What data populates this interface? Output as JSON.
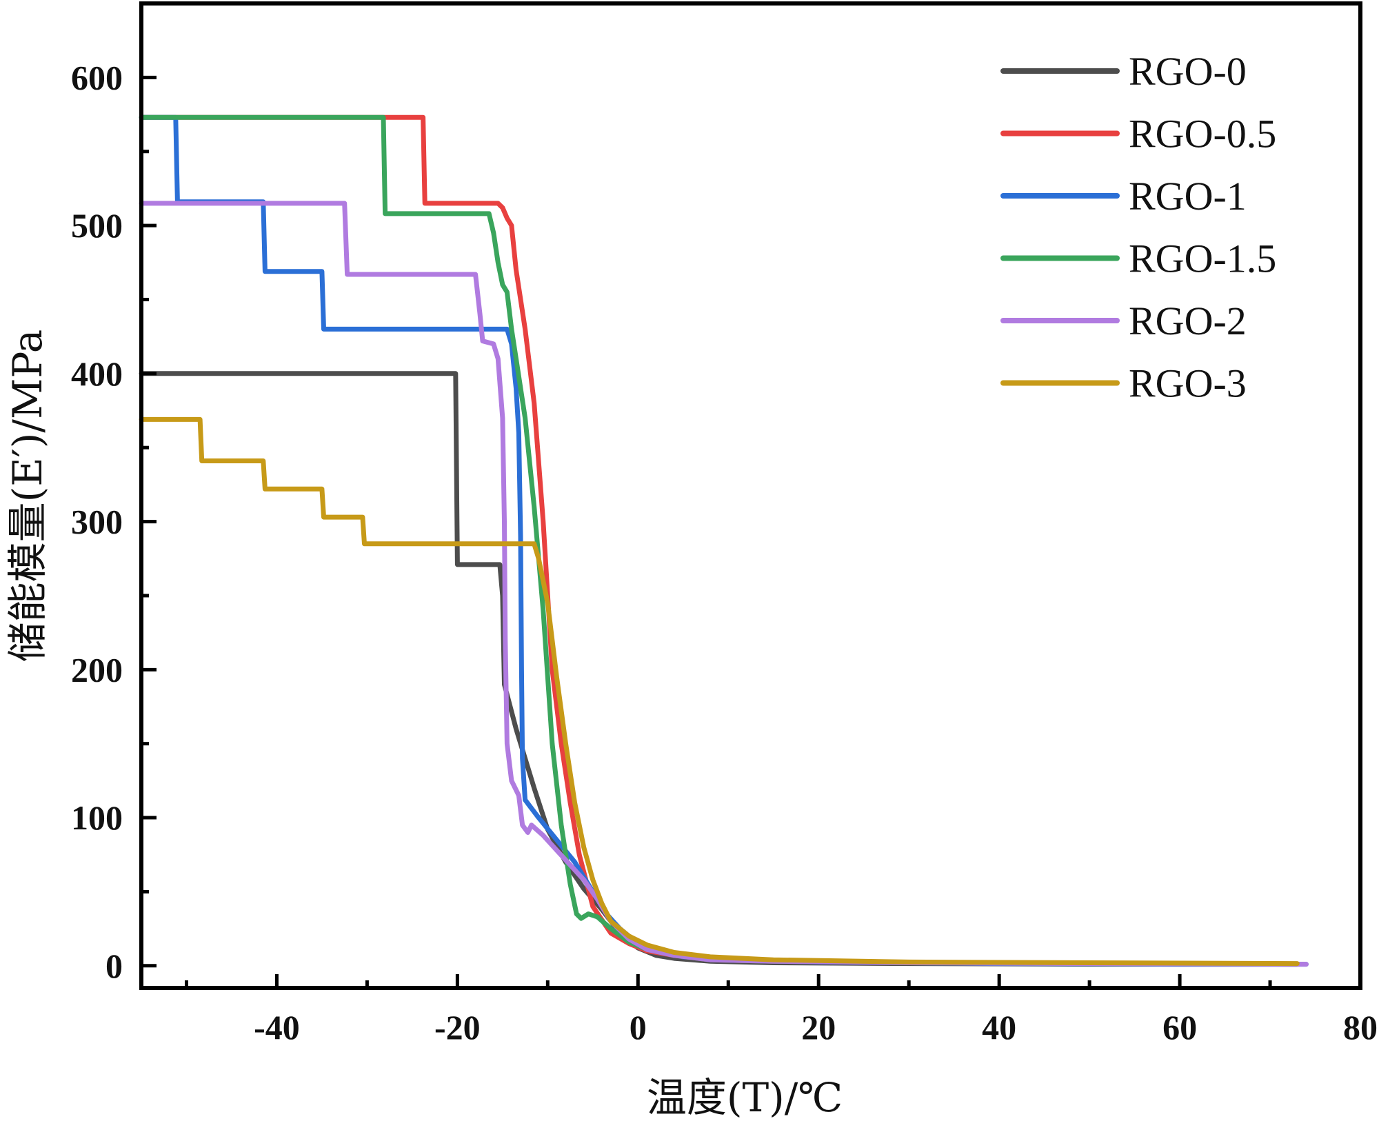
{
  "chart_data": {
    "type": "line",
    "title": "",
    "xlabel": "温度(T)/℃",
    "ylabel": "储能模量(E′)/MPa",
    "xlim": [
      -55,
      80
    ],
    "ylim": [
      -15,
      650
    ],
    "xticks": [
      -40,
      -20,
      0,
      20,
      40,
      60,
      80
    ],
    "yticks": [
      0,
      100,
      200,
      300,
      400,
      500,
      600
    ],
    "grid": false,
    "legend": "top-right",
    "series": [
      {
        "name": "RGO-0",
        "color": "#4d4d4d",
        "points": [
          [
            -55,
            400
          ],
          [
            -20.2,
            400
          ],
          [
            -20,
            271
          ],
          [
            -15.3,
            271
          ],
          [
            -15,
            250
          ],
          [
            -14.8,
            190
          ],
          [
            -13.5,
            160
          ],
          [
            -11.5,
            120
          ],
          [
            -10,
            92
          ],
          [
            -8,
            70
          ],
          [
            -6,
            52
          ],
          [
            -4,
            38
          ],
          [
            -2,
            22
          ],
          [
            0,
            12
          ],
          [
            2,
            7
          ],
          [
            4,
            5
          ],
          [
            8,
            3
          ],
          [
            15,
            2
          ],
          [
            30,
            1.5
          ],
          [
            50,
            1
          ],
          [
            73,
            1
          ]
        ]
      },
      {
        "name": "RGO-0.5",
        "color": "#e8403f",
        "points": [
          [
            -55,
            573
          ],
          [
            -23.8,
            573
          ],
          [
            -23.6,
            515
          ],
          [
            -15.5,
            515
          ],
          [
            -15,
            512
          ],
          [
            -14.5,
            505
          ],
          [
            -14,
            500
          ],
          [
            -13.5,
            470
          ],
          [
            -12.5,
            430
          ],
          [
            -11.5,
            380
          ],
          [
            -10.5,
            300
          ],
          [
            -9.5,
            200
          ],
          [
            -8.5,
            150
          ],
          [
            -7.5,
            110
          ],
          [
            -6.5,
            75
          ],
          [
            -5,
            40
          ],
          [
            -3,
            22
          ],
          [
            -1,
            15
          ],
          [
            1,
            10
          ],
          [
            4,
            7
          ],
          [
            8,
            4
          ],
          [
            15,
            3
          ],
          [
            30,
            2
          ],
          [
            50,
            1.5
          ],
          [
            73,
            1
          ]
        ]
      },
      {
        "name": "RGO-1",
        "color": "#2b6fd6",
        "points": [
          [
            -55,
            573
          ],
          [
            -51.2,
            573
          ],
          [
            -51,
            516
          ],
          [
            -41.5,
            516
          ],
          [
            -41.3,
            469
          ],
          [
            -35,
            469
          ],
          [
            -34.8,
            430
          ],
          [
            -14.5,
            430
          ],
          [
            -14,
            420
          ],
          [
            -13.5,
            390
          ],
          [
            -13.2,
            360
          ],
          [
            -13,
            290
          ],
          [
            -12.9,
            200
          ],
          [
            -12.8,
            140
          ],
          [
            -12.5,
            112
          ],
          [
            -11,
            100
          ],
          [
            -9,
            85
          ],
          [
            -7,
            70
          ],
          [
            -5,
            50
          ],
          [
            -3.5,
            35
          ],
          [
            -2,
            25
          ],
          [
            0,
            15
          ],
          [
            2,
            10
          ],
          [
            5,
            6
          ],
          [
            10,
            4
          ],
          [
            20,
            2.5
          ],
          [
            40,
            1.5
          ],
          [
            60,
            1
          ],
          [
            74,
            1
          ]
        ]
      },
      {
        "name": "RGO-1.5",
        "color": "#3aa55c",
        "points": [
          [
            -55,
            573
          ],
          [
            -28.2,
            573
          ],
          [
            -28,
            508
          ],
          [
            -16.5,
            508
          ],
          [
            -16,
            495
          ],
          [
            -15.5,
            475
          ],
          [
            -15,
            460
          ],
          [
            -14.5,
            455
          ],
          [
            -14,
            430
          ],
          [
            -13.5,
            410
          ],
          [
            -12.5,
            370
          ],
          [
            -11.5,
            310
          ],
          [
            -10.5,
            240
          ],
          [
            -9.5,
            150
          ],
          [
            -8.5,
            95
          ],
          [
            -7.5,
            55
          ],
          [
            -6.8,
            35
          ],
          [
            -6.3,
            32
          ],
          [
            -5.5,
            35
          ],
          [
            -4.5,
            33
          ],
          [
            -3,
            25
          ],
          [
            -1,
            16
          ],
          [
            1,
            11
          ],
          [
            4,
            7
          ],
          [
            8,
            4
          ],
          [
            15,
            3
          ],
          [
            30,
            2
          ],
          [
            50,
            1.5
          ],
          [
            73,
            1
          ]
        ]
      },
      {
        "name": "RGO-2",
        "color": "#b07be0",
        "points": [
          [
            -55,
            515
          ],
          [
            -32.5,
            515
          ],
          [
            -32.2,
            467
          ],
          [
            -18,
            467
          ],
          [
            -17.5,
            440
          ],
          [
            -17.2,
            422
          ],
          [
            -16,
            420
          ],
          [
            -15.5,
            410
          ],
          [
            -15,
            370
          ],
          [
            -14.8,
            300
          ],
          [
            -14.7,
            220
          ],
          [
            -14.5,
            150
          ],
          [
            -14,
            125
          ],
          [
            -13.2,
            115
          ],
          [
            -12.8,
            95
          ],
          [
            -12.2,
            90
          ],
          [
            -11.8,
            95
          ],
          [
            -10.5,
            88
          ],
          [
            -9,
            78
          ],
          [
            -7.5,
            68
          ],
          [
            -6,
            58
          ],
          [
            -4.5,
            45
          ],
          [
            -3,
            30
          ],
          [
            -1,
            18
          ],
          [
            1,
            11
          ],
          [
            4,
            7
          ],
          [
            8,
            4
          ],
          [
            15,
            3
          ],
          [
            30,
            2
          ],
          [
            50,
            1.5
          ],
          [
            74,
            1
          ]
        ]
      },
      {
        "name": "RGO-3",
        "color": "#c79a18",
        "points": [
          [
            -55,
            369
          ],
          [
            -48.5,
            369
          ],
          [
            -48.3,
            341
          ],
          [
            -41.5,
            341
          ],
          [
            -41.3,
            322
          ],
          [
            -35,
            322
          ],
          [
            -34.8,
            303
          ],
          [
            -30.5,
            303
          ],
          [
            -30.3,
            285
          ],
          [
            -11.5,
            285
          ],
          [
            -11,
            275
          ],
          [
            -10,
            245
          ],
          [
            -9,
            195
          ],
          [
            -8,
            150
          ],
          [
            -7,
            110
          ],
          [
            -6,
            80
          ],
          [
            -5,
            58
          ],
          [
            -4,
            42
          ],
          [
            -3,
            30
          ],
          [
            -1,
            20
          ],
          [
            1,
            14
          ],
          [
            4,
            9
          ],
          [
            8,
            6
          ],
          [
            15,
            4
          ],
          [
            30,
            2.5
          ],
          [
            50,
            2
          ],
          [
            73,
            1.5
          ]
        ]
      }
    ]
  }
}
